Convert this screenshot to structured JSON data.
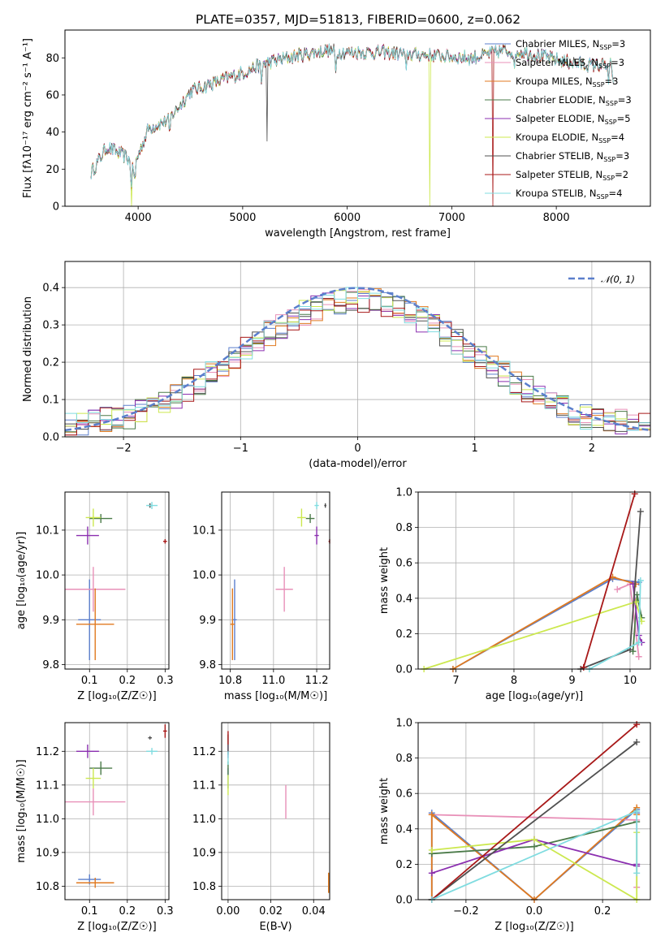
{
  "figure": {
    "title": "PLATE=0357, MJD=51813, FIBERID=0600, z=0.062"
  },
  "chart_data": [
    {
      "id": "spectrum",
      "type": "line",
      "xlabel": "wavelength [Angstrom, rest frame]",
      "ylabel": "Flux [fλ10⁻¹⁷ erg cm⁻² s⁻¹ A⁻¹]",
      "xlim": [
        3300,
        8900
      ],
      "ylim": [
        0,
        95
      ],
      "xticks": [
        4000,
        5000,
        6000,
        7000,
        8000
      ],
      "yticks": [
        0,
        20,
        40,
        60,
        80
      ],
      "grid": false,
      "legend_position": "right",
      "legend": [
        {
          "label": "Chabrier MILES, N",
          "sub": "SSP",
          "suffix": "=3",
          "color": "#5b7fcc"
        },
        {
          "label": "Salpeter MILES, N",
          "sub": "SSP",
          "suffix": "=3",
          "color": "#e890b8"
        },
        {
          "label": "Kroupa MILES, N",
          "sub": "SSP",
          "suffix": "=3",
          "color": "#e07a20"
        },
        {
          "label": "Chabrier ELODIE, N",
          "sub": "SSP",
          "suffix": "=3",
          "color": "#4a7a48"
        },
        {
          "label": "Salpeter ELODIE, N",
          "sub": "SSP",
          "suffix": "=5",
          "color": "#8b2fb0"
        },
        {
          "label": "Kroupa ELODIE, N",
          "sub": "SSP",
          "suffix": "=4",
          "color": "#cce84f"
        },
        {
          "label": "Chabrier STELIB, N",
          "sub": "SSP",
          "suffix": "=3",
          "color": "#505050"
        },
        {
          "label": "Salpeter STELIB, N",
          "sub": "SSP",
          "suffix": "=2",
          "color": "#a81818"
        },
        {
          "label": "Kroupa STELIB, N",
          "sub": "SSP",
          "suffix": "=4",
          "color": "#80dce0"
        }
      ],
      "continuum": {
        "x": [
          3550,
          3700,
          3900,
          3950,
          4100,
          4300,
          4500,
          4800,
          5000,
          5200,
          5500,
          5800,
          6000,
          6300,
          6600,
          6900,
          7200,
          7500,
          7700,
          8000,
          8300,
          8550
        ],
        "y": [
          18,
          32,
          26,
          20,
          42,
          47,
          62,
          68,
          72,
          77,
          81,
          84,
          83,
          83,
          82,
          81,
          80,
          84,
          83,
          79,
          76,
          76
        ]
      },
      "dropouts": [
        {
          "series": 5,
          "x": 3935,
          "y": 0
        },
        {
          "series": 5,
          "x": 6790,
          "y": 0
        },
        {
          "series": 7,
          "x": 7390,
          "y": 0
        },
        {
          "series": 6,
          "x": 5230,
          "y": 35
        }
      ]
    },
    {
      "id": "residual-histogram",
      "type": "histogram",
      "xlabel": "(data-model)/error",
      "ylabel": "Normed distribution",
      "xlim": [
        -2.5,
        2.5
      ],
      "ylim": [
        0,
        0.47
      ],
      "xticks": [
        -2,
        -1,
        0,
        1,
        2
      ],
      "yticks": [
        0.0,
        0.1,
        0.2,
        0.3,
        0.4
      ],
      "grid": true,
      "bin_width": 0.1,
      "gaussian_label": "𝒩(0, 1)",
      "gaussian_color": "#5b7fcc",
      "legend_position": "upper right"
    },
    {
      "id": "age-vs-z",
      "type": "scatter",
      "xlabel": "Z [log₁₀(Z/Z☉)]",
      "ylabel": "age  [log₁₀(age/yr)]",
      "xlim": [
        0.035,
        0.31
      ],
      "ylim": [
        9.79,
        10.185
      ],
      "xticks": [
        0.1,
        0.2,
        0.3
      ],
      "yticks": [
        9.8,
        9.9,
        10.0,
        10.1
      ],
      "grid": true,
      "points": [
        {
          "series": 0,
          "x": 0.1,
          "y": 9.9,
          "xerr": 0.03,
          "yerr": 0.09
        },
        {
          "series": 1,
          "x": 0.11,
          "y": 9.968,
          "xerr": 0.085,
          "yerr": 0.05
        },
        {
          "series": 2,
          "x": 0.115,
          "y": 9.89,
          "xerr": 0.05,
          "yerr": 0.08
        },
        {
          "series": 3,
          "x": 0.13,
          "y": 10.126,
          "xerr": 0.03,
          "yerr": 0.01
        },
        {
          "series": 4,
          "x": 0.095,
          "y": 10.088,
          "xerr": 0.03,
          "yerr": 0.02
        },
        {
          "series": 5,
          "x": 0.11,
          "y": 10.128,
          "xerr": 0.02,
          "yerr": 0.02
        },
        {
          "series": 6,
          "x": 0.26,
          "y": 10.155,
          "xerr": 0.005,
          "yerr": 0.005
        },
        {
          "series": 7,
          "x": 0.3,
          "y": 10.075,
          "xerr": 0.005,
          "yerr": 0.005
        },
        {
          "series": 8,
          "x": 0.265,
          "y": 10.155,
          "xerr": 0.015,
          "yerr": 0.008
        }
      ]
    },
    {
      "id": "age-vs-mass",
      "type": "scatter",
      "xlabel": "mass [log₁₀(M/M☉)]",
      "ylabel": "",
      "xlim": [
        10.76,
        11.26
      ],
      "ylim": [
        9.79,
        10.185
      ],
      "xticks": [
        10.8,
        11.0,
        11.2
      ],
      "yticks": [
        9.8,
        9.9,
        10.0,
        10.1
      ],
      "grid": true,
      "points": [
        {
          "series": 0,
          "x": 10.82,
          "y": 9.9,
          "xerr": 0.01,
          "yerr": 0.09
        },
        {
          "series": 1,
          "x": 11.05,
          "y": 9.968,
          "xerr": 0.04,
          "yerr": 0.05
        },
        {
          "series": 2,
          "x": 10.81,
          "y": 9.89,
          "xerr": 0.01,
          "yerr": 0.08
        },
        {
          "series": 3,
          "x": 11.17,
          "y": 10.126,
          "xerr": 0.02,
          "yerr": 0.01
        },
        {
          "series": 4,
          "x": 11.2,
          "y": 10.088,
          "xerr": 0.01,
          "yerr": 0.02
        },
        {
          "series": 5,
          "x": 11.13,
          "y": 10.128,
          "xerr": 0.02,
          "yerr": 0.02
        },
        {
          "series": 6,
          "x": 11.24,
          "y": 10.155,
          "xerr": 0.005,
          "yerr": 0.005
        },
        {
          "series": 7,
          "x": 11.26,
          "y": 10.075,
          "xerr": 0.005,
          "yerr": 0.005
        },
        {
          "series": 8,
          "x": 11.2,
          "y": 10.155,
          "xerr": 0.01,
          "yerr": 0.008
        }
      ]
    },
    {
      "id": "mass-weight-vs-age",
      "type": "line",
      "xlabel": "age  [log₁₀(age/yr)]",
      "ylabel": "mass weight",
      "xlim": [
        6.35,
        10.35
      ],
      "ylim": [
        0,
        1
      ],
      "xticks": [
        7,
        8,
        9,
        10
      ],
      "yticks": [
        0.0,
        0.2,
        0.4,
        0.6,
        0.8,
        1.0
      ],
      "grid": true,
      "lines": [
        {
          "series": 0,
          "x": [
            6.95,
            9.7,
            10.15
          ],
          "y": [
            0.0,
            0.51,
            0.49
          ]
        },
        {
          "series": 1,
          "x": [
            9.78,
            10.0,
            10.15
          ],
          "y": [
            0.45,
            0.48,
            0.07
          ]
        },
        {
          "series": 2,
          "x": [
            6.95,
            9.7,
            10.1
          ],
          "y": [
            0.0,
            0.52,
            0.48
          ]
        },
        {
          "series": 3,
          "x": [
            10.05,
            10.12,
            10.2
          ],
          "y": [
            0.1,
            0.42,
            0.29
          ]
        },
        {
          "series": 4,
          "x": [
            10.05,
            10.15,
            10.2
          ],
          "y": [
            0.48,
            0.19,
            0.15
          ]
        },
        {
          "series": 5,
          "x": [
            6.45,
            10.1,
            10.2
          ],
          "y": [
            0.0,
            0.38,
            0.27
          ]
        },
        {
          "series": 6,
          "x": [
            9.15,
            10.0,
            10.18
          ],
          "y": [
            0.0,
            0.11,
            0.89
          ]
        },
        {
          "series": 7,
          "x": [
            9.2,
            10.08
          ],
          "y": [
            0.01,
            0.99
          ]
        },
        {
          "series": 8,
          "x": [
            9.3,
            10.15,
            10.18
          ],
          "y": [
            0.0,
            0.15,
            0.5
          ]
        }
      ]
    },
    {
      "id": "mass-vs-z",
      "type": "scatter",
      "xlabel": "Z [log₁₀(Z/Z☉)]",
      "ylabel": "mass [log₁₀(M/M☉)]",
      "xlim": [
        0.035,
        0.31
      ],
      "ylim": [
        10.76,
        11.285
      ],
      "xticks": [
        0.1,
        0.2,
        0.3
      ],
      "yticks": [
        10.8,
        10.9,
        11.0,
        11.1,
        11.2
      ],
      "grid": true,
      "points": [
        {
          "series": 0,
          "x": 0.1,
          "y": 10.82,
          "xerr": 0.03,
          "yerr": 0.015
        },
        {
          "series": 1,
          "x": 0.11,
          "y": 11.05,
          "xerr": 0.085,
          "yerr": 0.04
        },
        {
          "series": 2,
          "x": 0.115,
          "y": 10.81,
          "xerr": 0.05,
          "yerr": 0.015
        },
        {
          "series": 3,
          "x": 0.13,
          "y": 11.15,
          "xerr": 0.03,
          "yerr": 0.02
        },
        {
          "series": 4,
          "x": 0.095,
          "y": 11.2,
          "xerr": 0.03,
          "yerr": 0.02
        },
        {
          "series": 5,
          "x": 0.11,
          "y": 11.12,
          "xerr": 0.02,
          "yerr": 0.03
        },
        {
          "series": 6,
          "x": 0.26,
          "y": 11.24,
          "xerr": 0.005,
          "yerr": 0.005
        },
        {
          "series": 7,
          "x": 0.3,
          "y": 11.26,
          "xerr": 0.005,
          "yerr": 0.02
        },
        {
          "series": 8,
          "x": 0.265,
          "y": 11.2,
          "xerr": 0.015,
          "yerr": 0.01
        }
      ]
    },
    {
      "id": "mass-vs-ebv",
      "type": "scatter",
      "xlabel": "E(B-V)",
      "ylabel": "",
      "xlim": [
        -0.003,
        0.0475
      ],
      "ylim": [
        10.76,
        11.285
      ],
      "xticks": [
        0.0,
        0.02,
        0.04
      ],
      "yticks": [
        10.8,
        10.9,
        11.0,
        11.1,
        11.2
      ],
      "grid": true,
      "points": [
        {
          "series": 0,
          "x": 0.0,
          "y": 11.12,
          "xerr": 0,
          "yerr": 0.03
        },
        {
          "series": 1,
          "x": 0.027,
          "y": 11.05,
          "xerr": 0,
          "yerr": 0.05
        },
        {
          "series": 2,
          "x": 0.047,
          "y": 10.81,
          "xerr": 0,
          "yerr": 0.03
        },
        {
          "series": 3,
          "x": 0.0,
          "y": 11.15,
          "xerr": 0,
          "yerr": 0.02
        },
        {
          "series": 4,
          "x": 0.0,
          "y": 11.2,
          "xerr": 0,
          "yerr": 0.02
        },
        {
          "series": 5,
          "x": 0.0,
          "y": 11.1,
          "xerr": 0,
          "yerr": 0.03
        },
        {
          "series": 6,
          "x": 0.0,
          "y": 11.22,
          "xerr": 0,
          "yerr": 0.03
        },
        {
          "series": 7,
          "x": 0.0,
          "y": 11.24,
          "xerr": 0,
          "yerr": 0.02
        },
        {
          "series": 8,
          "x": 0.0,
          "y": 11.18,
          "xerr": 0,
          "yerr": 0.02
        }
      ]
    },
    {
      "id": "mass-weight-vs-z",
      "type": "line",
      "xlabel": "Z [log₁₀(Z/Z☉)]",
      "ylabel": "mass weight",
      "xlim": [
        -0.34,
        0.34
      ],
      "ylim": [
        0,
        1
      ],
      "xticks": [
        -0.2,
        0.0,
        0.2
      ],
      "yticks": [
        0.0,
        0.2,
        0.4,
        0.6,
        0.8,
        1.0
      ],
      "grid": true,
      "lines": [
        {
          "series": 0,
          "x": [
            -0.3,
            -0.3,
            0.0,
            0.3,
            0.3
          ],
          "y": [
            0.0,
            0.49,
            0.0,
            0.51,
            0.49
          ]
        },
        {
          "series": 1,
          "x": [
            -0.3,
            0.3,
            0.3
          ],
          "y": [
            0.48,
            0.45,
            0.07
          ]
        },
        {
          "series": 2,
          "x": [
            -0.3,
            -0.3,
            0.0,
            0.3,
            0.3
          ],
          "y": [
            0.0,
            0.48,
            0.0,
            0.52,
            0.48
          ]
        },
        {
          "series": 3,
          "x": [
            -0.3,
            0.0,
            0.3
          ],
          "y": [
            0.26,
            0.3,
            0.44
          ]
        },
        {
          "series": 4,
          "x": [
            -0.3,
            0.0,
            0.3,
            0.3
          ],
          "y": [
            0.15,
            0.34,
            0.19,
            0.2
          ]
        },
        {
          "series": 5,
          "x": [
            -0.3,
            0.0,
            0.3,
            0.3
          ],
          "y": [
            0.28,
            0.34,
            0.0,
            0.38
          ]
        },
        {
          "series": 6,
          "x": [
            -0.3,
            0.3
          ],
          "y": [
            0.0,
            0.89
          ]
        },
        {
          "series": 7,
          "x": [
            -0.3,
            0.3
          ],
          "y": [
            0.0,
            0.99
          ]
        },
        {
          "series": 8,
          "x": [
            -0.3,
            0.3,
            0.3
          ],
          "y": [
            0.0,
            0.5,
            0.15
          ]
        }
      ]
    }
  ]
}
